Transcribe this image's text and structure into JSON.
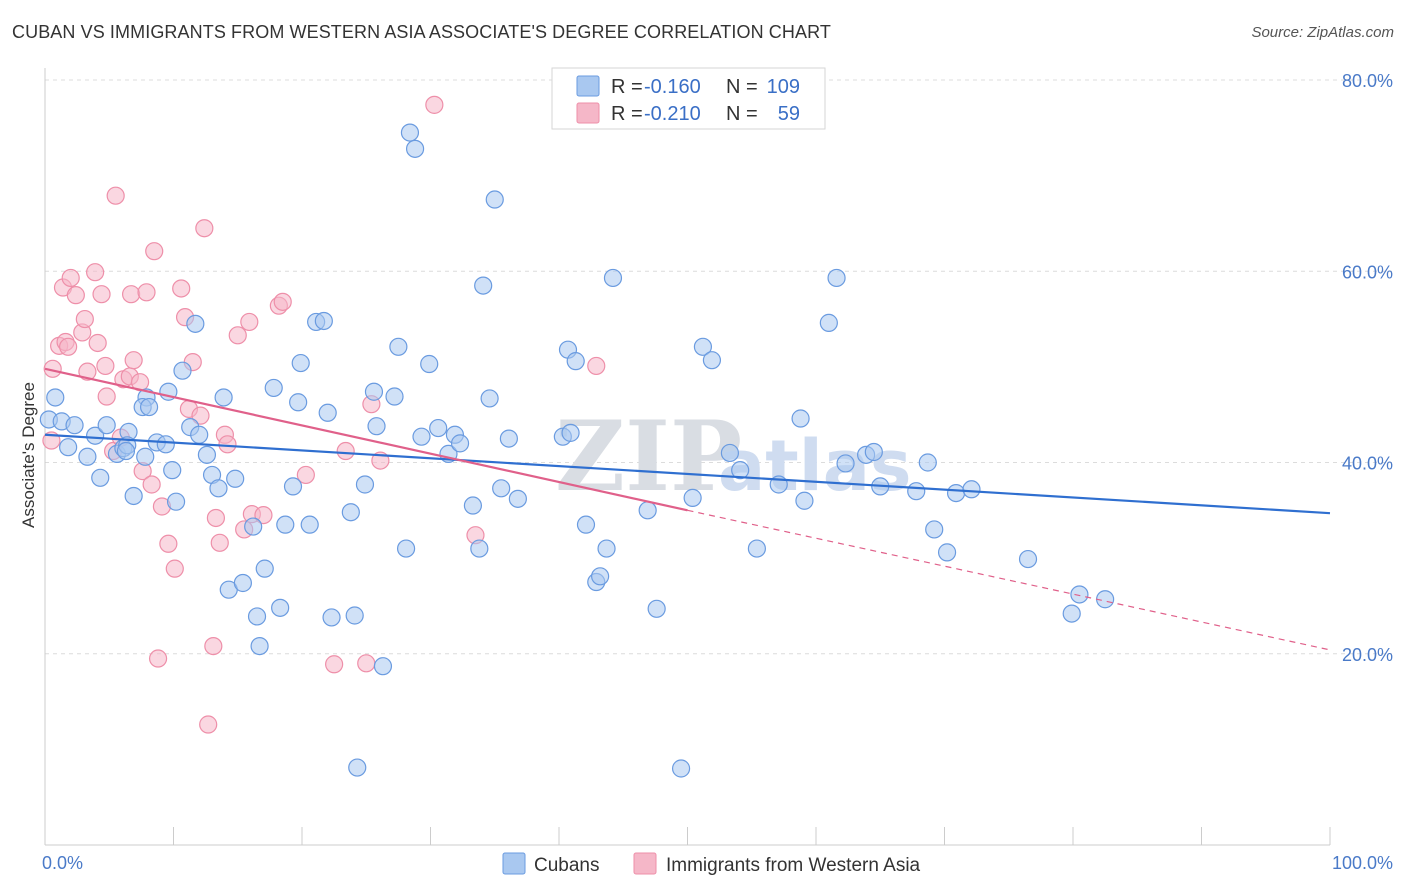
{
  "title": "CUBAN VS IMMIGRANTS FROM WESTERN ASIA ASSOCIATE'S DEGREE CORRELATION CHART",
  "source": "Source: ZipAtlas.com",
  "watermark": {
    "zip": "ZIP",
    "atlas": "atlas"
  },
  "legend": {
    "rows": [
      {
        "r_label": "R =",
        "r_value": "-0.160",
        "n_label": "N =",
        "n_value": "109",
        "color": "#a9c8f0"
      },
      {
        "r_label": "R =",
        "r_value": "-0.210",
        "n_label": "N =",
        "n_value": "59",
        "color": "#f5b7c8"
      }
    ]
  },
  "bottom_legend": [
    "Cubans",
    "Immigrants from Western Asia"
  ],
  "chart_data": {
    "type": "scatter",
    "title": "CUBAN VS IMMIGRANTS FROM WESTERN ASIA ASSOCIATE'S DEGREE CORRELATION CHART",
    "xlabel": "",
    "ylabel": "Associate's Degree",
    "xlim": [
      0,
      100
    ],
    "ylim": [
      0,
      80
    ],
    "x_tick_labels": [
      "0.0%",
      "100.0%"
    ],
    "y_ticks": [
      20,
      40,
      60,
      80
    ],
    "y_tick_labels": [
      "20.0%",
      "40.0%",
      "60.0%",
      "80.0%"
    ],
    "grid": "horizontal dashed",
    "legend_position": "top-center",
    "series": [
      {
        "name": "Cubans",
        "color": "#6a9be0",
        "fill": "#a9c8f0",
        "trend": {
          "x": [
            0,
            100
          ],
          "y": [
            42.9,
            34.7
          ],
          "style": "solid",
          "color": "#2f6fd0"
        },
        "points": [
          [
            0.3,
            44.5
          ],
          [
            0.8,
            46.8
          ],
          [
            1.3,
            44.3
          ],
          [
            1.8,
            41.6
          ],
          [
            2.3,
            43.9
          ],
          [
            3.3,
            40.6
          ],
          [
            3.9,
            42.8
          ],
          [
            4.3,
            38.4
          ],
          [
            4.8,
            43.9
          ],
          [
            5.6,
            40.9
          ],
          [
            6.1,
            41.5
          ],
          [
            6.5,
            43.2
          ],
          [
            6.4,
            41.8
          ],
          [
            6.3,
            41.2
          ],
          [
            6.9,
            36.5
          ],
          [
            7.8,
            40.6
          ],
          [
            7.9,
            46.8
          ],
          [
            7.6,
            45.8
          ],
          [
            8.1,
            45.8
          ],
          [
            8.7,
            42.1
          ],
          [
            9.4,
            41.9
          ],
          [
            9.6,
            47.4
          ],
          [
            9.9,
            39.2
          ],
          [
            10.2,
            35.9
          ],
          [
            10.7,
            49.6
          ],
          [
            11.3,
            43.7
          ],
          [
            11.7,
            54.5
          ],
          [
            12.0,
            42.9
          ],
          [
            12.6,
            40.8
          ],
          [
            13.0,
            38.7
          ],
          [
            13.5,
            37.3
          ],
          [
            13.9,
            46.8
          ],
          [
            14.3,
            26.7
          ],
          [
            14.8,
            38.3
          ],
          [
            15.4,
            27.4
          ],
          [
            16.2,
            33.3
          ],
          [
            16.5,
            23.9
          ],
          [
            16.7,
            20.8
          ],
          [
            17.1,
            28.9
          ],
          [
            17.8,
            47.8
          ],
          [
            18.7,
            33.5
          ],
          [
            18.3,
            24.8
          ],
          [
            19.3,
            37.5
          ],
          [
            19.7,
            46.3
          ],
          [
            19.9,
            50.4
          ],
          [
            20.6,
            33.5
          ],
          [
            21.1,
            54.7
          ],
          [
            21.7,
            54.8
          ],
          [
            22.0,
            45.2
          ],
          [
            22.3,
            23.8
          ],
          [
            23.8,
            34.8
          ],
          [
            24.1,
            24.0
          ],
          [
            24.3,
            8.1
          ],
          [
            24.9,
            37.7
          ],
          [
            25.6,
            47.4
          ],
          [
            25.8,
            43.8
          ],
          [
            26.3,
            18.7
          ],
          [
            27.2,
            46.9
          ],
          [
            27.5,
            52.1
          ],
          [
            28.1,
            31.0
          ],
          [
            28.4,
            74.5
          ],
          [
            28.8,
            72.8
          ],
          [
            29.3,
            42.7
          ],
          [
            29.9,
            50.3
          ],
          [
            30.6,
            43.6
          ],
          [
            31.4,
            40.9
          ],
          [
            31.9,
            42.9
          ],
          [
            32.3,
            42.0
          ],
          [
            33.3,
            35.5
          ],
          [
            33.8,
            31.0
          ],
          [
            34.1,
            58.5
          ],
          [
            34.6,
            46.7
          ],
          [
            35.0,
            67.5
          ],
          [
            35.5,
            37.3
          ],
          [
            36.1,
            42.5
          ],
          [
            36.8,
            36.2
          ],
          [
            40.3,
            42.7
          ],
          [
            40.7,
            51.8
          ],
          [
            40.9,
            43.1
          ],
          [
            41.3,
            50.6
          ],
          [
            42.1,
            33.5
          ],
          [
            42.9,
            27.5
          ],
          [
            43.2,
            28.1
          ],
          [
            43.7,
            31.0
          ],
          [
            44.2,
            59.3
          ],
          [
            46.9,
            35.0
          ],
          [
            47.6,
            24.7
          ],
          [
            49.5,
            8.0
          ],
          [
            50.4,
            36.3
          ],
          [
            51.2,
            52.1
          ],
          [
            51.9,
            50.7
          ],
          [
            53.3,
            41.0
          ],
          [
            54.1,
            39.2
          ],
          [
            55.4,
            31.0
          ],
          [
            57.1,
            37.7
          ],
          [
            58.8,
            44.6
          ],
          [
            59.1,
            36.0
          ],
          [
            61.0,
            54.6
          ],
          [
            61.6,
            59.3
          ],
          [
            62.3,
            39.9
          ],
          [
            63.9,
            40.8
          ],
          [
            64.5,
            41.1
          ],
          [
            65.0,
            37.5
          ],
          [
            67.8,
            37.0
          ],
          [
            68.7,
            40.0
          ],
          [
            69.2,
            33.0
          ],
          [
            70.2,
            30.6
          ],
          [
            70.9,
            36.8
          ],
          [
            72.1,
            37.2
          ],
          [
            76.5,
            29.9
          ],
          [
            79.9,
            24.2
          ],
          [
            80.5,
            26.2
          ],
          [
            82.5,
            25.7
          ]
        ]
      },
      {
        "name": "Immigrants from Western Asia",
        "color": "#ee8fa9",
        "fill": "#f5b7c8",
        "trend": {
          "x": [
            0,
            50
          ],
          "y": [
            49.8,
            35.0
          ],
          "x_dash": [
            50,
            100
          ],
          "y_dash": [
            35.0,
            20.4
          ],
          "style": "solid-then-dashed",
          "color": "#e0608a"
        },
        "points": [
          [
            0.5,
            42.3
          ],
          [
            0.6,
            49.8
          ],
          [
            1.1,
            52.2
          ],
          [
            1.4,
            58.3
          ],
          [
            1.6,
            52.6
          ],
          [
            1.8,
            52.1
          ],
          [
            2.0,
            59.3
          ],
          [
            2.4,
            57.5
          ],
          [
            2.9,
            53.6
          ],
          [
            3.1,
            55.0
          ],
          [
            3.3,
            49.5
          ],
          [
            3.9,
            59.9
          ],
          [
            4.1,
            52.5
          ],
          [
            4.4,
            57.6
          ],
          [
            4.7,
            50.1
          ],
          [
            4.8,
            46.9
          ],
          [
            5.3,
            41.2
          ],
          [
            5.5,
            67.9
          ],
          [
            5.9,
            42.6
          ],
          [
            6.1,
            48.7
          ],
          [
            6.6,
            49.0
          ],
          [
            6.7,
            57.6
          ],
          [
            6.9,
            50.7
          ],
          [
            7.4,
            48.4
          ],
          [
            7.6,
            39.1
          ],
          [
            7.9,
            57.8
          ],
          [
            8.3,
            37.7
          ],
          [
            8.5,
            62.1
          ],
          [
            8.8,
            19.5
          ],
          [
            9.1,
            35.4
          ],
          [
            9.6,
            31.5
          ],
          [
            10.1,
            28.9
          ],
          [
            10.6,
            58.2
          ],
          [
            10.9,
            55.2
          ],
          [
            11.2,
            45.6
          ],
          [
            11.5,
            50.5
          ],
          [
            12.1,
            44.9
          ],
          [
            12.4,
            64.5
          ],
          [
            12.7,
            12.6
          ],
          [
            13.1,
            20.8
          ],
          [
            13.3,
            34.2
          ],
          [
            13.6,
            31.6
          ],
          [
            14.0,
            42.9
          ],
          [
            14.2,
            41.9
          ],
          [
            15.0,
            53.3
          ],
          [
            15.5,
            33.0
          ],
          [
            15.9,
            54.7
          ],
          [
            16.1,
            34.6
          ],
          [
            17.0,
            34.5
          ],
          [
            18.2,
            56.4
          ],
          [
            18.5,
            56.8
          ],
          [
            20.3,
            38.7
          ],
          [
            22.5,
            18.9
          ],
          [
            23.4,
            41.2
          ],
          [
            25.0,
            19.0
          ],
          [
            25.4,
            46.1
          ],
          [
            26.1,
            40.2
          ],
          [
            30.3,
            77.4
          ],
          [
            33.5,
            32.4
          ],
          [
            42.9,
            50.1
          ]
        ]
      }
    ]
  }
}
